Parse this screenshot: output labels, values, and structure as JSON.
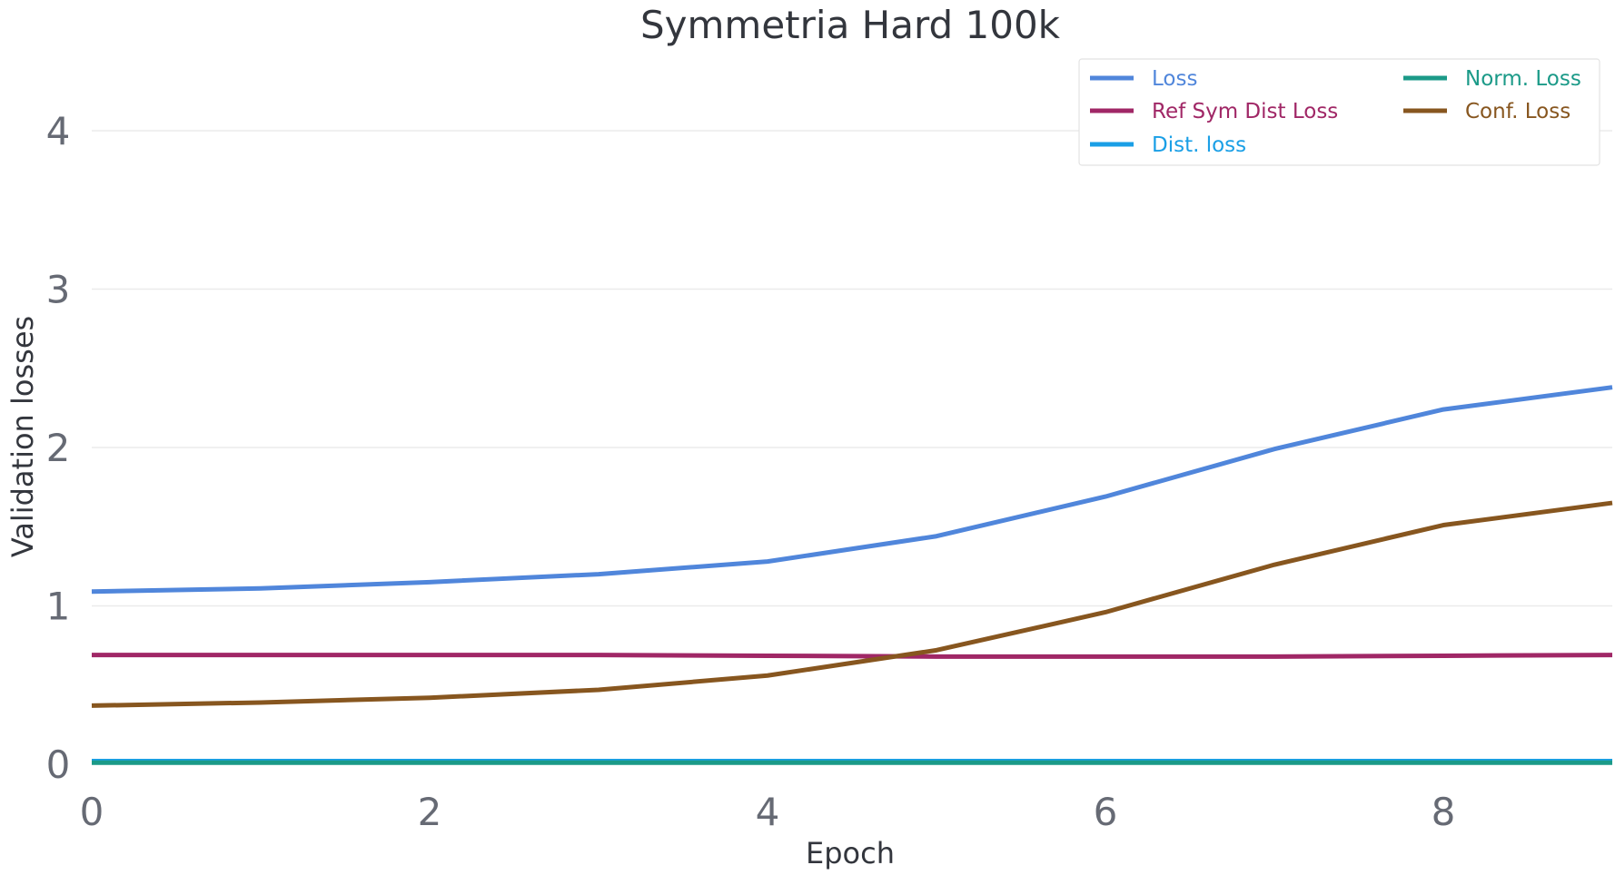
{
  "chart_data": {
    "type": "line",
    "title": "Symmetria Hard 100k",
    "xlabel": "Epoch",
    "ylabel": "Validation losses",
    "xlim": [
      0,
      9
    ],
    "ylim": [
      0,
      4
    ],
    "xticks": [
      0,
      2,
      4,
      6,
      8
    ],
    "yticks": [
      0,
      1,
      2,
      3,
      4
    ],
    "grid": "horizontal",
    "legend_position": "top-right",
    "x": [
      0,
      1,
      2,
      3,
      4,
      5,
      6,
      7,
      8,
      9
    ],
    "series": [
      {
        "name": "Loss",
        "color": "#5086db",
        "values": [
          1.09,
          1.11,
          1.15,
          1.2,
          1.28,
          1.44,
          1.69,
          1.99,
          2.24,
          2.38
        ]
      },
      {
        "name": "Ref Sym Dist Loss",
        "color": "#a02766",
        "values": [
          0.69,
          0.69,
          0.69,
          0.69,
          0.685,
          0.68,
          0.68,
          0.68,
          0.685,
          0.69
        ]
      },
      {
        "name": "Dist. loss",
        "color": "#1a9fe6",
        "values": [
          0.02,
          0.02,
          0.02,
          0.02,
          0.02,
          0.02,
          0.02,
          0.02,
          0.02,
          0.02
        ]
      },
      {
        "name": "Norm. Loss",
        "color": "#1b9a88",
        "values": [
          0.01,
          0.01,
          0.01,
          0.01,
          0.01,
          0.01,
          0.01,
          0.01,
          0.01,
          0.01
        ]
      },
      {
        "name": "Conf. Loss",
        "color": "#87561f",
        "values": [
          0.37,
          0.39,
          0.42,
          0.47,
          0.56,
          0.72,
          0.96,
          1.26,
          1.51,
          1.65
        ]
      }
    ],
    "legend_order": [
      "Loss",
      "Norm. Loss",
      "Ref Sym Dist Loss",
      "Conf. Loss",
      "Dist. loss"
    ]
  }
}
